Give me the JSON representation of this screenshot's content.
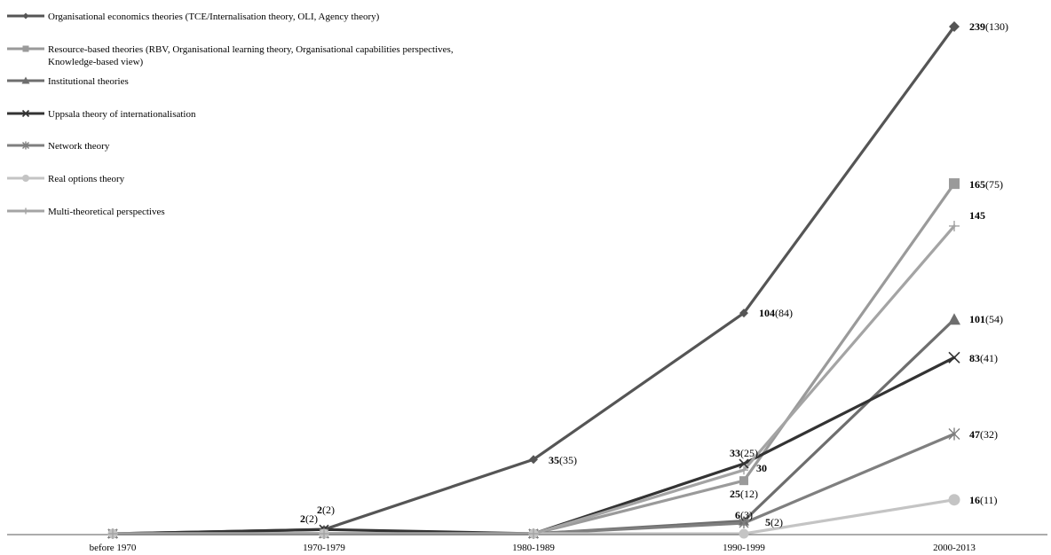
{
  "chart_data": {
    "type": "line",
    "categories": [
      "before 1970",
      "1970-1979",
      "1980-1989",
      "1990-1999",
      "2000-2013"
    ],
    "ylim": [
      0,
      250
    ],
    "grid": false,
    "legend_position": "top-left",
    "series": [
      {
        "name": "Organisational economics theories (TCE/Internalisation theory, OLI, Agency theory)",
        "color": "#555555",
        "marker": "diamond",
        "values": [
          0,
          2,
          35,
          104,
          239
        ],
        "labels": [
          null,
          null,
          {
            "bold": "35",
            "paren": "(35)"
          },
          {
            "bold": "104",
            "paren": "(84)"
          },
          {
            "bold": "239",
            "paren": "(130)"
          }
        ]
      },
      {
        "name": "Resource-based theories (RBV, Organisational learning theory, Organisational capabilities perspectives, Knowledge-based view)",
        "color": "#9a9a9a",
        "marker": "square",
        "values": [
          0,
          0,
          0,
          25,
          165
        ],
        "labels": [
          null,
          null,
          null,
          {
            "bold": "25",
            "paren": "(12)"
          },
          {
            "bold": "165",
            "paren": "(75)"
          }
        ]
      },
      {
        "name": "Institutional theories",
        "color": "#6e6e6e",
        "marker": "triangle",
        "values": [
          0,
          0,
          0,
          6,
          101
        ],
        "labels": [
          null,
          null,
          null,
          {
            "bold": "6",
            "paren": "(3)"
          },
          {
            "bold": "101",
            "paren": "(54)"
          }
        ]
      },
      {
        "name": "Uppsala theory of internationalisation",
        "color": "#333333",
        "marker": "x",
        "values": [
          0,
          2,
          0,
          33,
          83
        ],
        "labels": [
          null,
          {
            "bold": "2",
            "paren": "(2)"
          },
          null,
          {
            "bold": "33",
            "paren": "(25)"
          },
          {
            "bold": "83",
            "paren": "(41)"
          }
        ]
      },
      {
        "name": "Network theory",
        "color": "#7f7f7f",
        "marker": "asterisk",
        "values": [
          0,
          0,
          0,
          5,
          47
        ],
        "labels": [
          null,
          null,
          null,
          {
            "bold": "5",
            "paren": "(2)"
          },
          {
            "bold": "47",
            "paren": "(32)"
          }
        ]
      },
      {
        "name": "Real options theory",
        "color": "#c4c4c4",
        "marker": "circle",
        "values": [
          0,
          0,
          0,
          0,
          16
        ],
        "labels": [
          null,
          null,
          null,
          null,
          {
            "bold": "16",
            "paren": "(11)"
          }
        ]
      },
      {
        "name": "Multi-theoretical perspectives",
        "color": "#a4a4a4",
        "marker": "plus",
        "values": [
          0,
          0,
          0,
          30,
          145
        ],
        "labels": [
          null,
          null,
          null,
          {
            "bold": "30",
            "paren": ""
          },
          {
            "bold": "145",
            "paren": ""
          }
        ]
      }
    ],
    "extra_labels": [
      {
        "category": "1970-1979",
        "bold": "2",
        "paren": "(2)"
      }
    ]
  }
}
